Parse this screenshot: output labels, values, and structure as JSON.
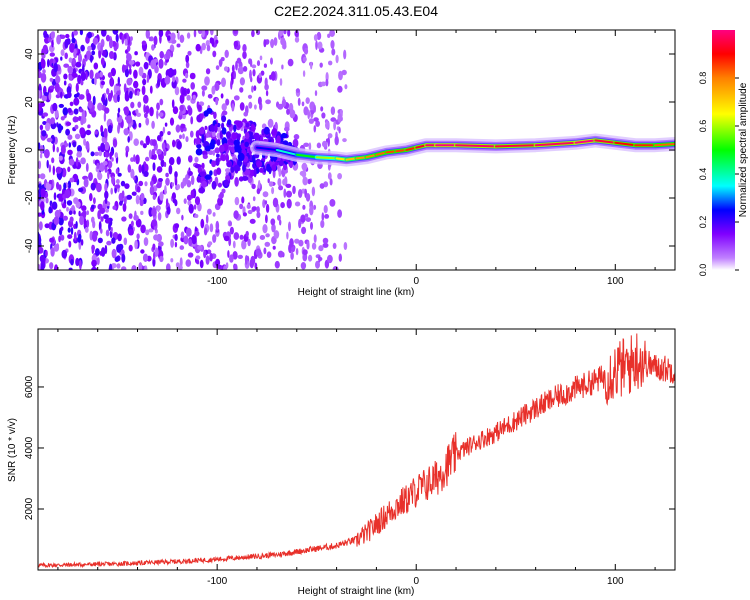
{
  "figure_title": "C2E2.2024.311.05.43.E04",
  "chart_data": [
    {
      "type": "heatmap",
      "title": "C2E2.2024.311.05.43.E04",
      "xlabel": "Height of straight line (km)",
      "ylabel": "Frequency (Hz)",
      "xlim": [
        -190,
        130
      ],
      "ylim": [
        -50,
        50
      ],
      "xticks": [
        -100,
        0,
        100
      ],
      "yticks": [
        -40,
        -20,
        0,
        20,
        40
      ],
      "colorbar": {
        "label": "Normalized spectral amplitude",
        "range": [
          0,
          1
        ],
        "ticks": [
          0.0,
          0.2,
          0.4,
          0.6,
          0.8
        ],
        "tick_labels": [
          "0.0",
          "0.2",
          "0.4",
          "0.6",
          "0.8"
        ],
        "colormap": [
          "#ffffff",
          "#8000ff",
          "#0000ff",
          "#00ffff",
          "#00ff00",
          "#ffff00",
          "#ff0000",
          "#ff0080"
        ]
      },
      "ridge": {
        "x": [
          -80,
          -70,
          -60,
          -50,
          -40,
          -35,
          -30,
          -25,
          -20,
          -15,
          -10,
          -5,
          0,
          5,
          10,
          20,
          40,
          60,
          80,
          90,
          100,
          110,
          120,
          130
        ],
        "freq": [
          1,
          0,
          -2,
          -3,
          -3.5,
          -4,
          -3.5,
          -3,
          -2,
          -1,
          -0.5,
          0,
          1,
          2,
          2,
          2,
          1.5,
          2,
          3,
          4,
          3,
          2,
          2,
          2.5
        ],
        "amplitude": [
          0.2,
          0.3,
          0.45,
          0.55,
          0.65,
          0.7,
          0.75,
          0.8,
          0.8,
          0.85,
          0.85,
          0.85,
          0.9,
          0.95,
          1.0,
          1.0,
          0.95,
          0.95,
          1.0,
          1.0,
          0.9,
          0.9,
          0.85,
          0.8
        ]
      },
      "noise_region": {
        "x_from": -190,
        "x_to": -35
      }
    },
    {
      "type": "line",
      "xlabel": "Height of straight line (km)",
      "ylabel": "SNR (10 * v/v)",
      "xlim": [
        -190,
        130
      ],
      "ylim": [
        0,
        7900
      ],
      "xticks": [
        -100,
        0,
        100
      ],
      "yticks": [
        2000,
        4000,
        6000
      ],
      "series": [
        {
          "color": "#e8302a",
          "x": [
            -190,
            -150,
            -120,
            -100,
            -80,
            -70,
            -60,
            -50,
            -40,
            -35,
            -30,
            -25,
            -20,
            -15,
            -10,
            -5,
            0,
            5,
            10,
            15,
            20,
            25,
            30,
            40,
            50,
            60,
            70,
            80,
            90,
            95,
            100,
            105,
            108,
            110,
            112,
            115,
            120,
            125,
            130
          ],
          "values": [
            150,
            200,
            280,
            350,
            450,
            500,
            600,
            700,
            800,
            900,
            1000,
            1200,
            1500,
            1800,
            2100,
            2300,
            2600,
            2800,
            3000,
            3400,
            3800,
            4000,
            4200,
            4500,
            4900,
            5300,
            5650,
            5950,
            6200,
            6350,
            6550,
            6650,
            6750,
            6900,
            6950,
            6800,
            6650,
            6600,
            6550
          ]
        }
      ]
    }
  ]
}
